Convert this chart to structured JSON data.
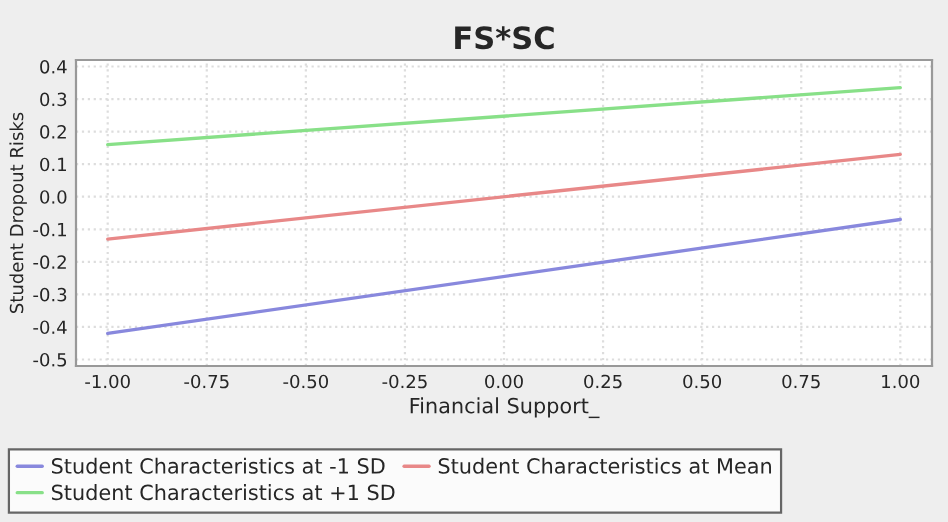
{
  "chart_data": {
    "type": "line",
    "title": "FS*SC",
    "xlabel": "Financial Support_",
    "ylabel": "Student Dropout Risks",
    "x": [
      -1.0,
      1.0
    ],
    "series": [
      {
        "name": "Student Characteristics at -1 SD",
        "color": "#8888dd",
        "values": [
          -0.42,
          -0.07
        ]
      },
      {
        "name": "Student Characteristics at Mean",
        "color": "#e88888",
        "values": [
          -0.13,
          0.13
        ]
      },
      {
        "name": "Student Characteristics at +1 SD",
        "color": "#88e088",
        "values": [
          0.16,
          0.335
        ]
      }
    ],
    "xlim": [
      -1.08,
      1.08
    ],
    "xticks": [
      {
        "value": -1.0,
        "label": "-1.00"
      },
      {
        "value": -0.75,
        "label": "-0.75"
      },
      {
        "value": -0.5,
        "label": "-0.50"
      },
      {
        "value": -0.25,
        "label": "-0.25"
      },
      {
        "value": 0.0,
        "label": "0.00"
      },
      {
        "value": 0.25,
        "label": "0.25"
      },
      {
        "value": 0.5,
        "label": "0.50"
      },
      {
        "value": 0.75,
        "label": "0.75"
      },
      {
        "value": 1.0,
        "label": "1.00"
      }
    ],
    "ylim": [
      -0.52,
      0.42
    ],
    "yticks": [
      {
        "value": -0.5,
        "label": "-0.5"
      },
      {
        "value": -0.4,
        "label": "-0.4"
      },
      {
        "value": -0.3,
        "label": "-0.3"
      },
      {
        "value": -0.2,
        "label": "-0.2"
      },
      {
        "value": -0.1,
        "label": "-0.1"
      },
      {
        "value": 0.0,
        "label": "0.0"
      },
      {
        "value": 0.1,
        "label": "0.1"
      },
      {
        "value": 0.2,
        "label": "0.2"
      },
      {
        "value": 0.3,
        "label": "0.3"
      },
      {
        "value": 0.4,
        "label": "0.4"
      }
    ],
    "grid": true,
    "legend": "bottom",
    "line_style": "solid"
  }
}
